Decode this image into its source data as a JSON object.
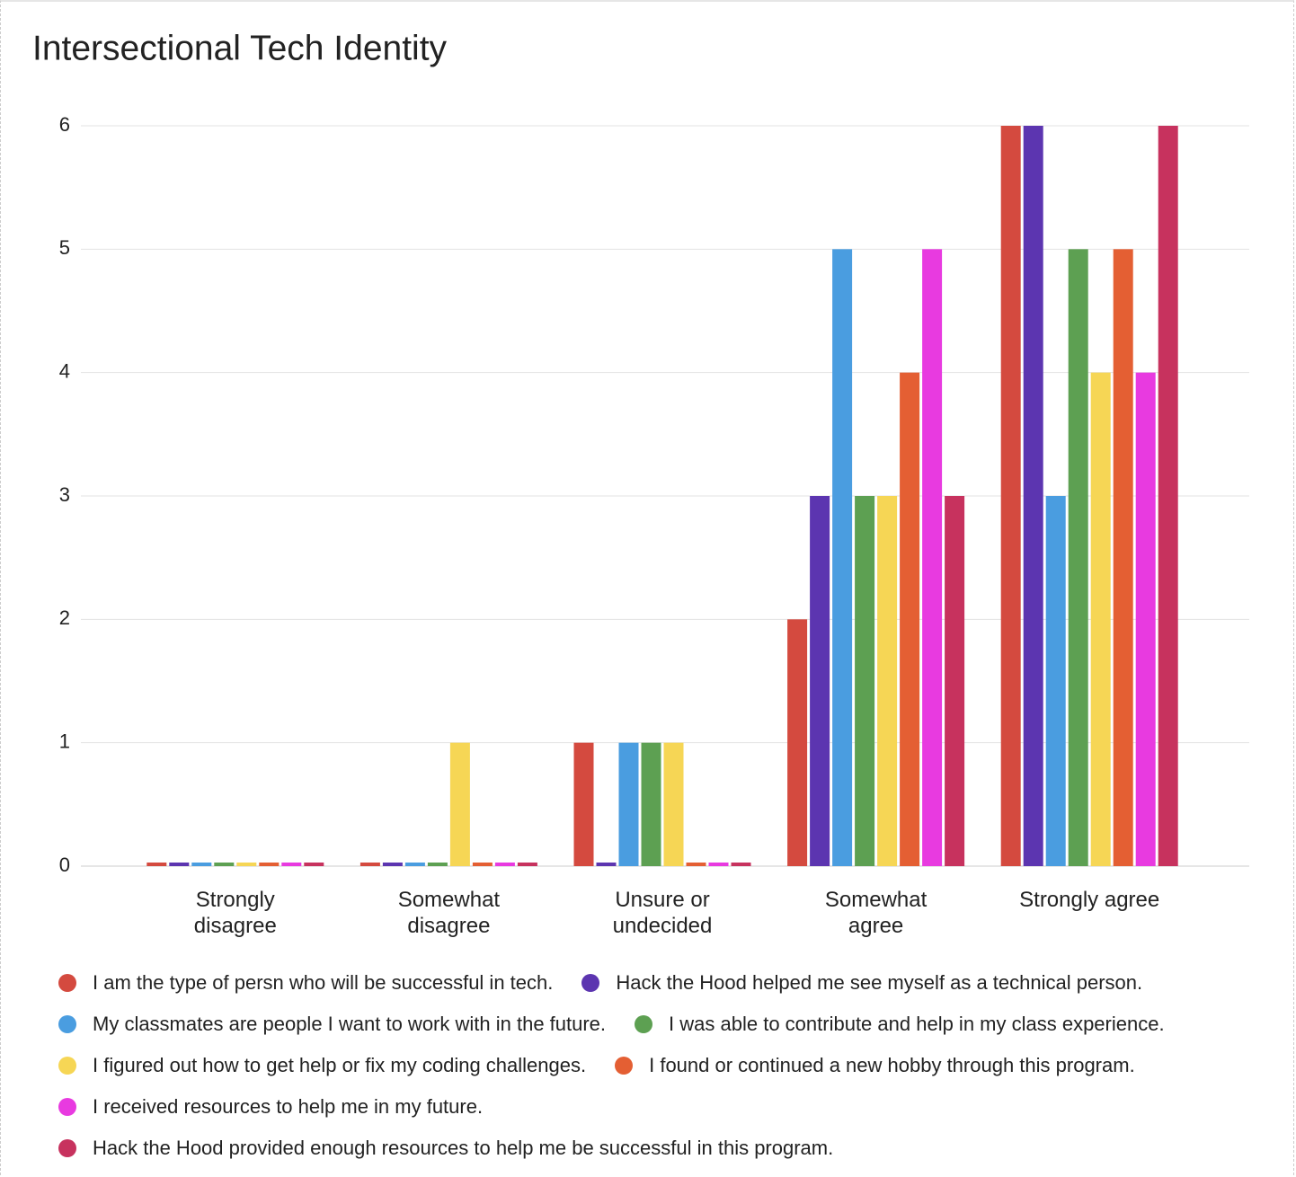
{
  "chart_data": {
    "type": "bar",
    "title": "Intersectional Tech Identity",
    "categories": [
      "Strongly disagree",
      "Somewhat disagree",
      "Unsure or undecided",
      "Somewhat agree",
      "Strongly agree"
    ],
    "series": [
      {
        "name": "I am the type of persn who will be successful in tech.",
        "color": "#d44a3f",
        "values": [
          0,
          0,
          1,
          2,
          6
        ]
      },
      {
        "name": "Hack the Hood helped me see myself as a technical person.",
        "color": "#5c35b0",
        "values": [
          0,
          0,
          0,
          3,
          6
        ]
      },
      {
        "name": "My classmates are people I want to work with in the future.",
        "color": "#4a9de0",
        "values": [
          0,
          0,
          1,
          5,
          3
        ]
      },
      {
        "name": "I was able to contribute and help in my class experience.",
        "color": "#5da052",
        "values": [
          0,
          0,
          1,
          3,
          5
        ]
      },
      {
        "name": "I figured out how to get help or fix my coding challenges.",
        "color": "#f6d655",
        "values": [
          0,
          1,
          1,
          3,
          4
        ]
      },
      {
        "name": "I found or continued a new hobby through this program.",
        "color": "#e45f33",
        "values": [
          0,
          0,
          0,
          4,
          5
        ]
      },
      {
        "name": "I received resources to help me in my future.",
        "color": "#e83ae0",
        "values": [
          0,
          0,
          0,
          5,
          4
        ]
      },
      {
        "name": "Hack the Hood provided enough resources to help me be successful in this program.",
        "color": "#c7325e",
        "values": [
          0,
          0,
          0,
          3,
          6
        ]
      }
    ],
    "ylim": [
      0,
      6
    ],
    "yticks": [
      0,
      1,
      2,
      3,
      4,
      5,
      6
    ],
    "grid": true,
    "legend": "bottom"
  }
}
